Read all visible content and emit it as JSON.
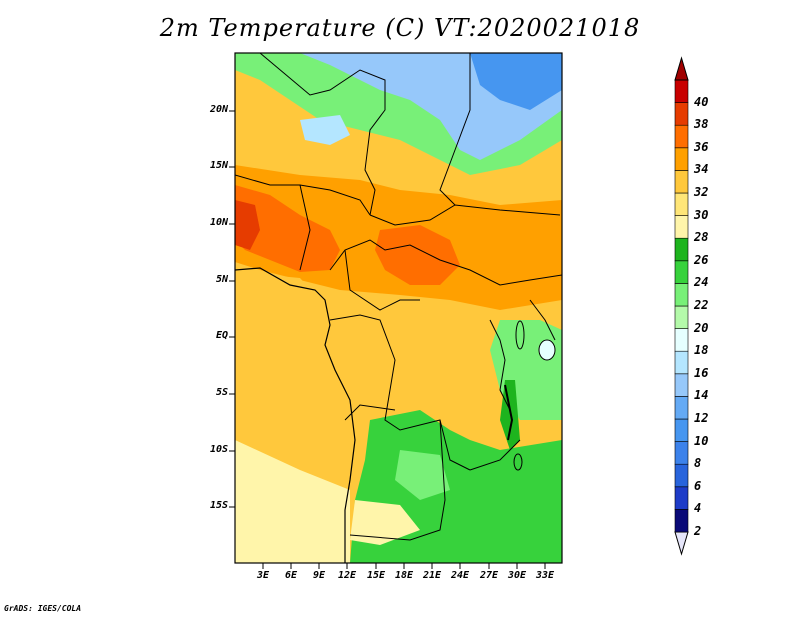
{
  "title": "2m Temperature (C) VT:2020021018",
  "credit": "GrADS: IGES/COLA",
  "lat_labels": [
    "20N",
    "15N",
    "10N",
    "5N",
    "EQ",
    "5S",
    "10S",
    "15S"
  ],
  "lon_labels": [
    "3E",
    "6E",
    "9E",
    "12E",
    "15E",
    "18E",
    "21E",
    "24E",
    "27E",
    "30E",
    "33E"
  ],
  "colorbar": {
    "levels": [
      "2",
      "4",
      "6",
      "8",
      "10",
      "12",
      "14",
      "16",
      "18",
      "20",
      "22",
      "24",
      "26",
      "28",
      "30",
      "32",
      "34",
      "36",
      "38",
      "40"
    ],
    "colors": [
      "#0a0a78",
      "#1e3cc8",
      "#2864dc",
      "#3c82eb",
      "#4696f0",
      "#64aaf5",
      "#96c8fa",
      "#b4e6ff",
      "#e6ffff",
      "#b4faaa",
      "#78f078",
      "#37d23c",
      "#1eb41e",
      "#fff5aa",
      "#ffe678",
      "#ffc83c",
      "#ffa000",
      "#ff6e00",
      "#e63c00",
      "#c80000",
      "#a00000"
    ],
    "under_color": "#e6e6fa",
    "over_color": "#a00000"
  },
  "map": {
    "region": "Central Africa",
    "lon_range": [
      0,
      35
    ],
    "lat_range": [
      -20,
      25
    ],
    "variable": "2m temperature",
    "units": "C"
  }
}
